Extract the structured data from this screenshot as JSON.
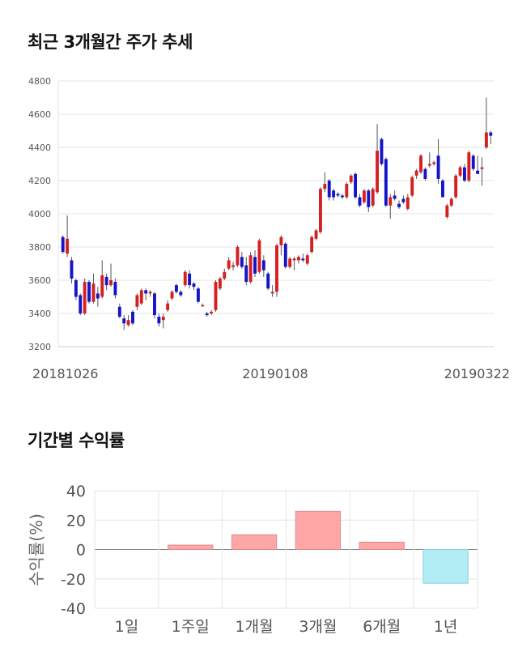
{
  "sections": {
    "price_title": "최근 3개월간 주가 추세",
    "returns_title": "기간별 수익률"
  },
  "colors": {
    "up": "#d61f1f",
    "down": "#1414c8",
    "wick": "#555555",
    "bar_pos": "#ffa6a6",
    "bar_pos_stroke": "#e08a8a",
    "bar_neg": "#b2ecf5",
    "bar_neg_stroke": "#8ccfdc",
    "grid": "#e6e6e6"
  },
  "chart_data": [
    {
      "type": "candlestick",
      "title": "최근 3개월간 주가 추세",
      "y_ticks": [
        "4800",
        "4600",
        "4400",
        "4200",
        "4000",
        "3800",
        "3600",
        "3400",
        "3200"
      ],
      "ylim": [
        3200,
        4800
      ],
      "x_labels": [
        "20181026",
        "20190108",
        "20190322"
      ],
      "grid": true,
      "candles": [
        [
          3860,
          3870,
          3760,
          3770
        ],
        [
          3760,
          3990,
          3740,
          3850
        ],
        [
          3720,
          3740,
          3580,
          3610
        ],
        [
          3600,
          3610,
          3480,
          3500
        ],
        [
          3510,
          3520,
          3390,
          3400
        ],
        [
          3400,
          3610,
          3390,
          3590
        ],
        [
          3590,
          3600,
          3460,
          3470
        ],
        [
          3470,
          3640,
          3460,
          3580
        ],
        [
          3520,
          3560,
          3440,
          3490
        ],
        [
          3500,
          3720,
          3490,
          3630
        ],
        [
          3620,
          3640,
          3540,
          3570
        ],
        [
          3570,
          3700,
          3560,
          3600
        ],
        [
          3590,
          3610,
          3490,
          3510
        ],
        [
          3440,
          3460,
          3370,
          3380
        ],
        [
          3370,
          3390,
          3300,
          3340
        ],
        [
          3330,
          3390,
          3320,
          3360
        ],
        [
          3410,
          3420,
          3330,
          3340
        ],
        [
          3440,
          3520,
          3420,
          3510
        ],
        [
          3460,
          3550,
          3450,
          3540
        ],
        [
          3540,
          3550,
          3480,
          3520
        ],
        [
          3520,
          3540,
          3500,
          3530
        ],
        [
          3520,
          3530,
          3370,
          3390
        ],
        [
          3380,
          3400,
          3320,
          3340
        ],
        [
          3360,
          3400,
          3310,
          3380
        ],
        [
          3420,
          3480,
          3410,
          3460
        ],
        [
          3490,
          3540,
          3480,
          3530
        ],
        [
          3570,
          3580,
          3520,
          3530
        ],
        [
          3530,
          3540,
          3500,
          3510
        ],
        [
          3570,
          3660,
          3560,
          3650
        ],
        [
          3640,
          3660,
          3550,
          3570
        ],
        [
          3580,
          3590,
          3540,
          3560
        ],
        [
          3550,
          3560,
          3460,
          3470
        ],
        [
          3450,
          3460,
          3440,
          3450
        ],
        [
          3400,
          3410,
          3380,
          3390
        ],
        [
          3400,
          3420,
          3390,
          3410
        ],
        [
          3420,
          3600,
          3410,
          3590
        ],
        [
          3550,
          3620,
          3540,
          3610
        ],
        [
          3610,
          3670,
          3600,
          3650
        ],
        [
          3670,
          3740,
          3660,
          3720
        ],
        [
          3680,
          3710,
          3660,
          3690
        ],
        [
          3690,
          3810,
          3680,
          3800
        ],
        [
          3740,
          3770,
          3670,
          3680
        ],
        [
          3690,
          3740,
          3570,
          3590
        ],
        [
          3590,
          3770,
          3580,
          3750
        ],
        [
          3740,
          3780,
          3620,
          3640
        ],
        [
          3650,
          3850,
          3640,
          3840
        ],
        [
          3720,
          3750,
          3620,
          3660
        ],
        [
          3640,
          3650,
          3540,
          3550
        ],
        [
          3520,
          3570,
          3500,
          3530
        ],
        [
          3530,
          3820,
          3500,
          3810
        ],
        [
          3810,
          3870,
          3750,
          3860
        ],
        [
          3820,
          3830,
          3670,
          3680
        ],
        [
          3680,
          3740,
          3670,
          3730
        ],
        [
          3720,
          3740,
          3660,
          3730
        ],
        [
          3720,
          3750,
          3700,
          3740
        ],
        [
          3730,
          3760,
          3710,
          3720
        ],
        [
          3700,
          3760,
          3690,
          3750
        ],
        [
          3770,
          3870,
          3760,
          3860
        ],
        [
          3850,
          3910,
          3840,
          3900
        ],
        [
          3890,
          4160,
          3880,
          4150
        ],
        [
          4150,
          4250,
          4130,
          4180
        ],
        [
          4200,
          4210,
          4080,
          4100
        ],
        [
          4140,
          4150,
          4080,
          4100
        ],
        [
          4120,
          4130,
          4100,
          4110
        ],
        [
          4110,
          4120,
          4090,
          4100
        ],
        [
          4100,
          4190,
          4090,
          4180
        ],
        [
          4190,
          4240,
          4180,
          4230
        ],
        [
          4240,
          4250,
          4090,
          4100
        ],
        [
          4100,
          4120,
          4040,
          4050
        ],
        [
          4070,
          4150,
          4060,
          4140
        ],
        [
          4140,
          4150,
          4010,
          4040
        ],
        [
          4050,
          4160,
          4040,
          4150
        ],
        [
          4130,
          4540,
          4120,
          4380
        ],
        [
          4450,
          4460,
          4290,
          4300
        ],
        [
          4330,
          4340,
          4040,
          4050
        ],
        [
          4050,
          4120,
          3970,
          4100
        ],
        [
          4110,
          4140,
          4080,
          4090
        ],
        [
          4060,
          4080,
          4030,
          4040
        ],
        [
          4090,
          4110,
          4060,
          4070
        ],
        [
          4030,
          4120,
          4020,
          4100
        ],
        [
          4110,
          4230,
          4100,
          4220
        ],
        [
          4230,
          4270,
          4210,
          4260
        ],
        [
          4250,
          4360,
          4240,
          4350
        ],
        [
          4270,
          4280,
          4200,
          4210
        ],
        [
          4290,
          4370,
          4280,
          4300
        ],
        [
          4300,
          4320,
          4290,
          4310
        ],
        [
          4350,
          4450,
          4180,
          4210
        ],
        [
          4200,
          4210,
          4100,
          4100
        ],
        [
          3980,
          4060,
          3970,
          4050
        ],
        [
          4050,
          4100,
          4040,
          4090
        ],
        [
          4100,
          4240,
          4090,
          4230
        ],
        [
          4230,
          4290,
          4220,
          4280
        ],
        [
          4280,
          4300,
          4190,
          4200
        ],
        [
          4200,
          4380,
          4190,
          4370
        ],
        [
          4350,
          4360,
          4260,
          4270
        ],
        [
          4260,
          4350,
          4240,
          4240
        ],
        [
          4270,
          4340,
          4170,
          4280
        ],
        [
          4400,
          4700,
          4390,
          4490
        ],
        [
          4490,
          4500,
          4420,
          4470
        ]
      ]
    },
    {
      "type": "bar",
      "title": "기간별 수익률",
      "ylabel": "수익률(%)",
      "categories": [
        "1일",
        "1주일",
        "1개월",
        "3개월",
        "6개월",
        "1년"
      ],
      "values": [
        0,
        3,
        10,
        26,
        5,
        -23
      ],
      "y_ticks": [
        "40",
        "20",
        "0",
        "-20",
        "-40"
      ],
      "ylim": [
        -40,
        40
      ],
      "grid": true
    }
  ]
}
